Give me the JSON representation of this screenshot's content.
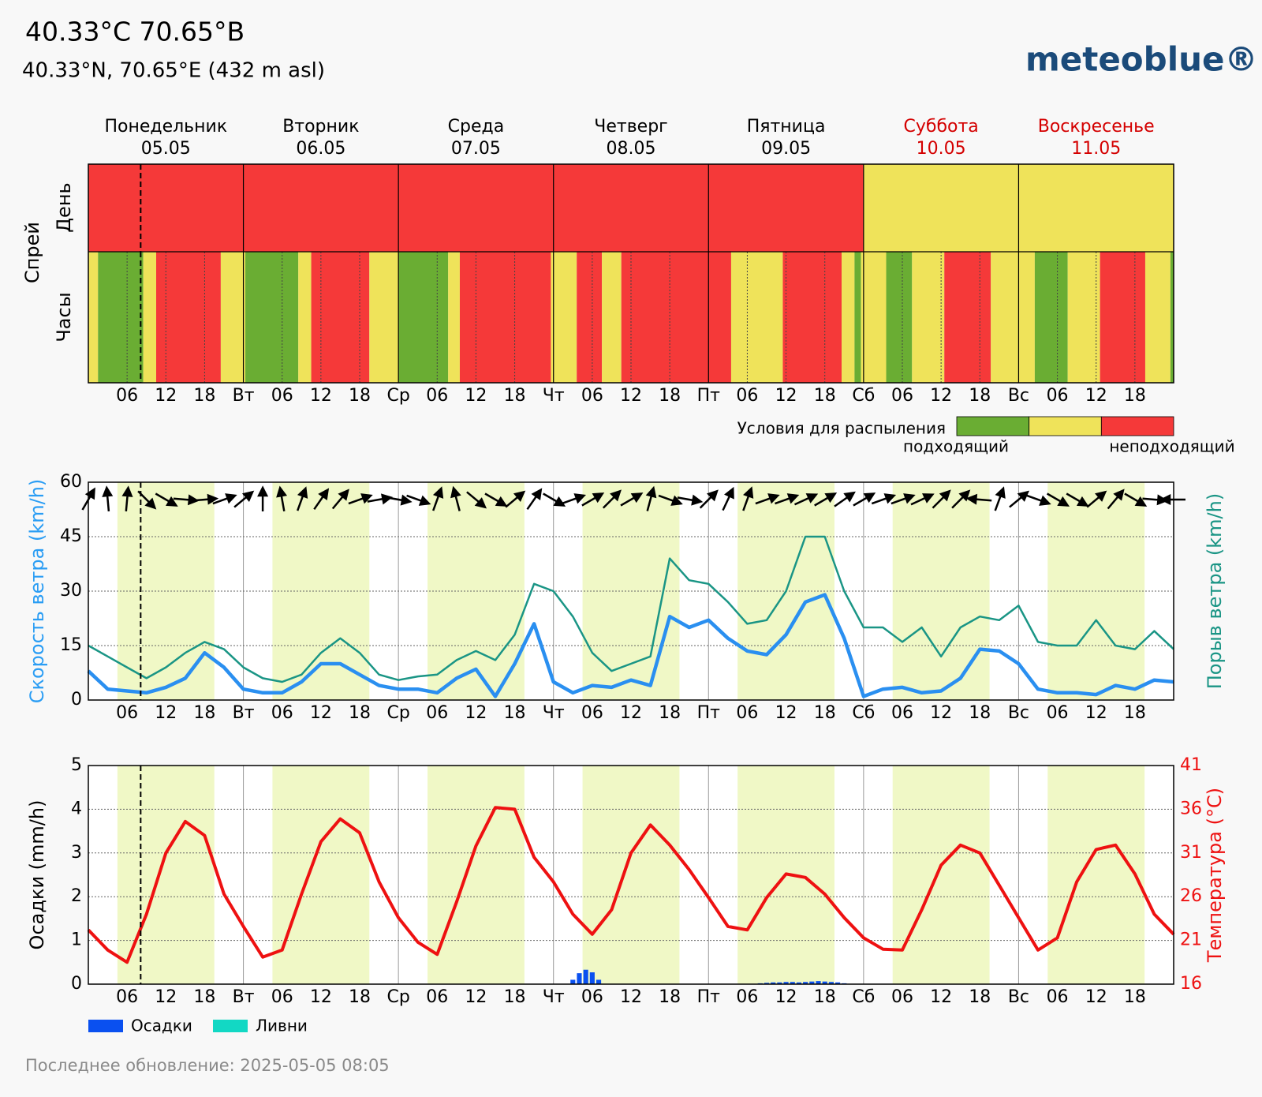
{
  "header": {
    "title": "40.33°C 70.65°В",
    "subtitle": "40.33°N, 70.65°E (432 m asl)",
    "logo": "meteoblue®"
  },
  "footer": {
    "text": "Последнее обновление: 2025-05-05 08:05"
  },
  "chart_data": [
    {
      "type": "heatmap",
      "y_title": "Спрей",
      "rows": [
        "День",
        "Часы"
      ],
      "days": [
        {
          "name": "Понедельник",
          "date": "05.05",
          "color": "#000000"
        },
        {
          "name": "Вторник",
          "date": "06.05",
          "color": "#000000"
        },
        {
          "name": "Среда",
          "date": "07.05",
          "color": "#000000"
        },
        {
          "name": "Четверг",
          "date": "08.05",
          "color": "#000000"
        },
        {
          "name": "Пятница",
          "date": "09.05",
          "color": "#000000"
        },
        {
          "name": "Суббота",
          "date": "10.05",
          "color": "#d40000"
        },
        {
          "name": "Воскресенье",
          "date": "11.05",
          "color": "#d40000"
        }
      ],
      "levels": [
        "#6aad33",
        "#efe35a",
        "#f53939"
      ],
      "day_levels": [
        2,
        2,
        2,
        2,
        2,
        1,
        1
      ],
      "hour_segments": [
        {
          "start": 0,
          "end": 1.5,
          "level": 1
        },
        {
          "start": 1.5,
          "end": 8.5,
          "level": 0
        },
        {
          "start": 8.5,
          "end": 10.5,
          "level": 1
        },
        {
          "start": 10.5,
          "end": 20.5,
          "level": 2
        },
        {
          "start": 20.5,
          "end": 24.3,
          "level": 1
        },
        {
          "start": 24.3,
          "end": 32.5,
          "level": 0
        },
        {
          "start": 32.5,
          "end": 34.5,
          "level": 1
        },
        {
          "start": 34.5,
          "end": 43.5,
          "level": 2
        },
        {
          "start": 43.5,
          "end": 48,
          "level": 1
        },
        {
          "start": 48,
          "end": 55.7,
          "level": 0
        },
        {
          "start": 55.7,
          "end": 57.5,
          "level": 1
        },
        {
          "start": 57.5,
          "end": 71.6,
          "level": 2
        },
        {
          "start": 71.6,
          "end": 75.6,
          "level": 1
        },
        {
          "start": 75.6,
          "end": 79.5,
          "level": 2
        },
        {
          "start": 79.5,
          "end": 82.5,
          "level": 1
        },
        {
          "start": 82.5,
          "end": 99.5,
          "level": 2
        },
        {
          "start": 99.5,
          "end": 107.5,
          "level": 1
        },
        {
          "start": 107.5,
          "end": 116.6,
          "level": 2
        },
        {
          "start": 116.6,
          "end": 118.6,
          "level": 1
        },
        {
          "start": 118.6,
          "end": 119.6,
          "level": 0
        },
        {
          "start": 119.6,
          "end": 123.5,
          "level": 1
        },
        {
          "start": 123.5,
          "end": 127.5,
          "level": 0
        },
        {
          "start": 127.5,
          "end": 132.5,
          "level": 1
        },
        {
          "start": 132.5,
          "end": 139.7,
          "level": 2
        },
        {
          "start": 139.7,
          "end": 146.5,
          "level": 1
        },
        {
          "start": 146.5,
          "end": 151.6,
          "level": 0
        },
        {
          "start": 151.6,
          "end": 156.6,
          "level": 1
        },
        {
          "start": 156.6,
          "end": 163.6,
          "level": 2
        },
        {
          "start": 163.6,
          "end": 167.5,
          "level": 1
        },
        {
          "start": 167.5,
          "end": 168,
          "level": 0
        }
      ],
      "xlim": [
        0,
        168
      ],
      "xticks": [
        {
          "value": 6,
          "label": "06"
        },
        12,
        18,
        {
          "value": 24,
          "label": "Вт"
        },
        {
          "value": 30,
          "label": "06"
        },
        {
          "value": 36,
          "label": "12"
        },
        {
          "value": 42,
          "label": "18"
        },
        {
          "value": 48,
          "label": "Ср"
        },
        {
          "value": 54,
          "label": "06"
        },
        {
          "value": 60,
          "label": "12"
        },
        {
          "value": 66,
          "label": "18"
        },
        {
          "value": 72,
          "label": "Чт"
        },
        {
          "value": 78,
          "label": "06"
        },
        {
          "value": 84,
          "label": "12"
        },
        {
          "value": 90,
          "label": "18"
        },
        {
          "value": 96,
          "label": "Пт"
        },
        {
          "value": 102,
          "label": "06"
        },
        {
          "value": 108,
          "label": "12"
        },
        {
          "value": 114,
          "label": "18"
        },
        {
          "value": 120,
          "label": "Сб"
        },
        {
          "value": 126,
          "label": "06"
        },
        {
          "value": 132,
          "label": "12"
        },
        {
          "value": 138,
          "label": "18"
        },
        {
          "value": 144,
          "label": "Вс"
        },
        {
          "value": 150,
          "label": "06"
        },
        {
          "value": 156,
          "label": "12"
        },
        {
          "value": 162,
          "label": "18"
        }
      ],
      "now": 8.1,
      "legend": {
        "title": "Условия для распыления",
        "labels": [
          "подходящий",
          "неподходящий"
        ]
      }
    },
    {
      "type": "line",
      "ylabel": "Скорость ветра (km/h)",
      "y2label": "Порыв ветра (km/h)",
      "ylabel_color": "#2a9df4",
      "y2label_color": "#1a9585",
      "ylim": [
        0,
        60
      ],
      "yticks": [
        0,
        15,
        30,
        45,
        60
      ],
      "y2lim": [
        0,
        60
      ],
      "grid": true,
      "daylight": [
        4.5,
        19.5
      ],
      "now": 8.1,
      "xlim": [
        0,
        168
      ],
      "xticks": [
        {
          "value": 6,
          "label": "06"
        },
        12,
        18,
        {
          "value": 24,
          "label": "Вт"
        },
        {
          "value": 30,
          "label": "06"
        },
        {
          "value": 36,
          "label": "12"
        },
        {
          "value": 42,
          "label": "18"
        },
        {
          "value": 48,
          "label": "Ср"
        },
        {
          "value": 54,
          "label": "06"
        },
        {
          "value": 60,
          "label": "12"
        },
        {
          "value": 66,
          "label": "18"
        },
        {
          "value": 72,
          "label": "Чт"
        },
        {
          "value": 78,
          "label": "06"
        },
        {
          "value": 84,
          "label": "12"
        },
        {
          "value": 90,
          "label": "18"
        },
        {
          "value": 96,
          "label": "Пт"
        },
        {
          "value": 102,
          "label": "06"
        },
        {
          "value": 108,
          "label": "12"
        },
        {
          "value": 114,
          "label": "18"
        },
        {
          "value": 120,
          "label": "Сб"
        },
        {
          "value": 126,
          "label": "06"
        },
        {
          "value": 132,
          "label": "12"
        },
        {
          "value": 138,
          "label": "18"
        },
        {
          "value": 144,
          "label": "Вс"
        },
        {
          "value": 150,
          "label": "06"
        },
        {
          "value": 156,
          "label": "12"
        },
        {
          "value": 162,
          "label": "18"
        }
      ],
      "x": [
        0,
        3,
        6,
        9,
        12,
        15,
        18,
        21,
        24,
        27,
        30,
        33,
        36,
        39,
        42,
        45,
        48,
        51,
        54,
        57,
        60,
        63,
        66,
        69,
        72,
        75,
        78,
        81,
        84,
        87,
        90,
        93,
        96,
        99,
        102,
        105,
        108,
        111,
        114,
        117,
        120,
        123,
        126,
        129,
        132,
        135,
        138,
        141,
        144,
        147,
        150,
        153,
        156,
        159,
        162,
        165,
        168
      ],
      "series": [
        {
          "color": "#1a9585",
          "axis": "y2",
          "values": [
            15,
            12,
            9,
            6,
            9,
            13,
            16,
            14,
            9,
            6,
            5,
            7,
            13,
            17,
            13,
            7,
            5.5,
            6.5,
            7,
            11,
            13.5,
            11,
            18,
            32,
            30,
            23,
            13,
            8,
            10,
            12,
            39,
            33,
            32,
            27,
            21,
            22,
            30,
            45,
            45,
            30,
            20,
            20,
            16,
            20,
            12,
            20,
            23,
            22,
            26,
            16,
            15,
            15,
            22,
            15,
            14,
            19,
            14
          ]
        },
        {
          "color": "#2a8ff0",
          "values": [
            8,
            3,
            2.5,
            2,
            3.5,
            6,
            13,
            9,
            3,
            2,
            2,
            5,
            10,
            10,
            7,
            4,
            3,
            3,
            2,
            6,
            8.5,
            1,
            10,
            21,
            5,
            2,
            4,
            3.5,
            5.5,
            4,
            23,
            20,
            22,
            17,
            13.5,
            12.5,
            18,
            27,
            29,
            17,
            1,
            3,
            3.5,
            2,
            2.5,
            6,
            14,
            13.5,
            10,
            3,
            2,
            2,
            1.5,
            4,
            3,
            5.5,
            5
          ]
        }
      ],
      "wind_direction": [
        210,
        175,
        185,
        315,
        300,
        275,
        265,
        250,
        230,
        180,
        170,
        200,
        215,
        220,
        250,
        260,
        280,
        290,
        200,
        165,
        310,
        300,
        230,
        215,
        300,
        250,
        240,
        225,
        240,
        195,
        290,
        280,
        225,
        205,
        200,
        250,
        250,
        245,
        240,
        235,
        240,
        250,
        250,
        245,
        225,
        225,
        95,
        200,
        230,
        290,
        300,
        300,
        230,
        220,
        300,
        275,
        90
      ]
    },
    {
      "type": "combo",
      "ylabel": "Осадки (mm/h)",
      "y2label": "Температура (°C)",
      "y2color": "#ee1111",
      "ylim": [
        0,
        5
      ],
      "yticks": [
        0,
        1,
        2,
        3,
        4,
        5
      ],
      "y2lim": [
        16,
        41
      ],
      "y2ticks": [
        16,
        21,
        26,
        31,
        36,
        41
      ],
      "grid": true,
      "daylight": [
        4.5,
        19.5
      ],
      "now": 8.1,
      "xlim": [
        0,
        168
      ],
      "xticks": [
        {
          "value": 6,
          "label": "06"
        },
        12,
        18,
        {
          "value": 24,
          "label": "Вт"
        },
        {
          "value": 30,
          "label": "06"
        },
        {
          "value": 36,
          "label": "12"
        },
        {
          "value": 42,
          "label": "18"
        },
        {
          "value": 48,
          "label": "Ср"
        },
        {
          "value": 54,
          "label": "06"
        },
        {
          "value": 60,
          "label": "12"
        },
        {
          "value": 66,
          "label": "18"
        },
        {
          "value": 72,
          "label": "Чт"
        },
        {
          "value": 78,
          "label": "06"
        },
        {
          "value": 84,
          "label": "12"
        },
        {
          "value": 90,
          "label": "18"
        },
        {
          "value": 96,
          "label": "Пт"
        },
        {
          "value": 102,
          "label": "06"
        },
        {
          "value": 108,
          "label": "12"
        },
        {
          "value": 114,
          "label": "18"
        },
        {
          "value": 120,
          "label": "Сб"
        },
        {
          "value": 126,
          "label": "06"
        },
        {
          "value": 132,
          "label": "12"
        },
        {
          "value": 138,
          "label": "18"
        },
        {
          "value": 144,
          "label": "Вс"
        },
        {
          "value": 150,
          "label": "06"
        },
        {
          "value": 156,
          "label": "12"
        },
        {
          "value": 162,
          "label": "18"
        }
      ],
      "series": [
        {
          "name": "Осадки",
          "type": "bar",
          "color": "#0a50f0",
          "x": [
            75,
            76,
            77,
            78,
            79,
            104,
            105,
            106,
            107,
            108,
            109,
            110,
            111,
            112,
            113,
            114,
            115,
            116,
            117
          ],
          "values": [
            0.1,
            0.25,
            0.33,
            0.27,
            0.1,
            0.02,
            0.03,
            0.04,
            0.04,
            0.05,
            0.05,
            0.04,
            0.05,
            0.06,
            0.07,
            0.06,
            0.05,
            0.04,
            0.02
          ]
        },
        {
          "name": "Ливни",
          "type": "bar",
          "color": "#12d8c4",
          "x": [],
          "values": []
        },
        {
          "type": "line",
          "axis": "y2",
          "color": "#ee1111",
          "x": [
            0,
            3,
            6,
            9,
            12,
            15,
            18,
            21,
            24,
            27,
            30,
            33,
            36,
            39,
            42,
            45,
            48,
            51,
            54,
            57,
            60,
            63,
            66,
            69,
            72,
            75,
            78,
            81,
            84,
            87,
            90,
            93,
            96,
            99,
            102,
            105,
            108,
            111,
            114,
            117,
            120,
            123,
            126,
            129,
            132,
            135,
            138,
            141,
            144,
            147,
            150,
            153,
            156,
            159,
            162,
            165,
            168
          ],
          "values": [
            22.2,
            19.9,
            18.5,
            24,
            31,
            34.6,
            33,
            26.3,
            22.6,
            19.1,
            19.9,
            26.3,
            32.3,
            34.9,
            33.3,
            27.7,
            23.6,
            20.8,
            19.4,
            25.4,
            31.8,
            36.2,
            36,
            30.5,
            27.7,
            24,
            21.7,
            24.5,
            31,
            34.2,
            31.9,
            29.1,
            25.9,
            22.6,
            22.2,
            25.9,
            28.6,
            28.2,
            26.3,
            23.6,
            21.3,
            20,
            19.9,
            24.5,
            29.6,
            31.9,
            31,
            27.3,
            23.6,
            19.9,
            21.3,
            27.7,
            31.4,
            31.9,
            28.6,
            24,
            21.7
          ]
        }
      ]
    }
  ]
}
